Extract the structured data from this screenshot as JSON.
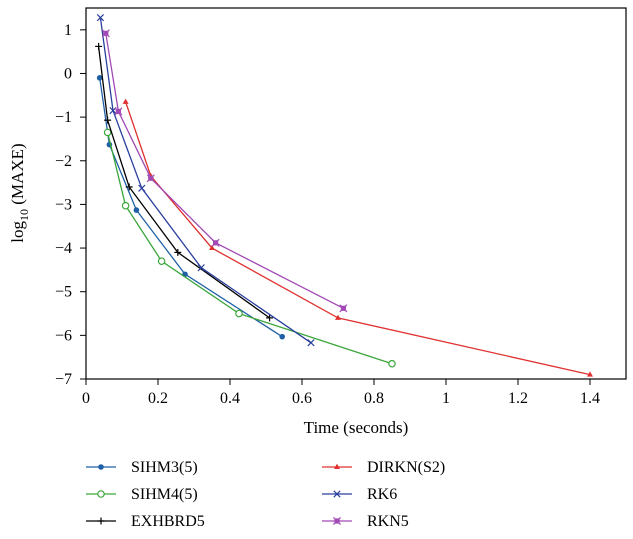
{
  "chart_data": {
    "type": "line",
    "xlabel": "Time (seconds)",
    "ylabel": "log",
    "ylabel_sub": "10",
    "ylabel_rest": " (MAXE)",
    "xlim": [
      0,
      1.5
    ],
    "ylim": [
      -7,
      1.5
    ],
    "xticks": [
      0,
      0.2,
      0.4,
      0.6,
      0.8,
      1,
      1.2,
      1.4
    ],
    "xtick_labels": [
      "0",
      "0.2",
      "0.4",
      "0.6",
      "0.8",
      "1",
      "1.2",
      "1.4"
    ],
    "yticks": [
      1,
      0,
      -1,
      -2,
      -3,
      -4,
      -5,
      -6,
      -7
    ],
    "ytick_labels": [
      "1",
      "0",
      "−1",
      "−2",
      "−3",
      "−4",
      "−5",
      "−6",
      "−7"
    ],
    "grid": false,
    "legend_position": "below",
    "series": [
      {
        "name": "SIHM3(5)",
        "color": "#1f5fa6",
        "marker": "dot",
        "x": [
          0.038,
          0.065,
          0.14,
          0.275,
          0.545
        ],
        "y": [
          -0.1,
          -1.63,
          -3.13,
          -4.6,
          -6.03
        ]
      },
      {
        "name": "SIHM4(5)",
        "color": "#3aa63a",
        "marker": "circle",
        "x": [
          0.06,
          0.11,
          0.21,
          0.425,
          0.85
        ],
        "y": [
          -1.35,
          -3.03,
          -4.3,
          -5.5,
          -6.65
        ]
      },
      {
        "name": "EXHBRD5",
        "color": "#000000",
        "marker": "plus",
        "x": [
          0.035,
          0.06,
          0.12,
          0.255,
          0.51
        ],
        "y": [
          0.62,
          -1.07,
          -2.6,
          -4.1,
          -5.6
        ]
      },
      {
        "name": "DIRKN(S2)",
        "color": "#e03030",
        "marker": "tri",
        "x": [
          0.11,
          0.18,
          0.35,
          0.7,
          1.4
        ],
        "y": [
          -0.65,
          -2.35,
          -4.0,
          -5.6,
          -6.9
        ]
      },
      {
        "name": "RK6",
        "color": "#2a3f9e",
        "marker": "x",
        "x": [
          0.04,
          0.075,
          0.155,
          0.32,
          0.625
        ],
        "y": [
          1.28,
          -0.85,
          -2.63,
          -4.45,
          -6.17
        ]
      },
      {
        "name": "RKN5",
        "color": "#a24ab5",
        "marker": "asterisk",
        "x": [
          0.055,
          0.09,
          0.18,
          0.36,
          0.715
        ],
        "y": [
          0.92,
          -0.87,
          -2.4,
          -3.88,
          -5.38
        ]
      }
    ]
  }
}
